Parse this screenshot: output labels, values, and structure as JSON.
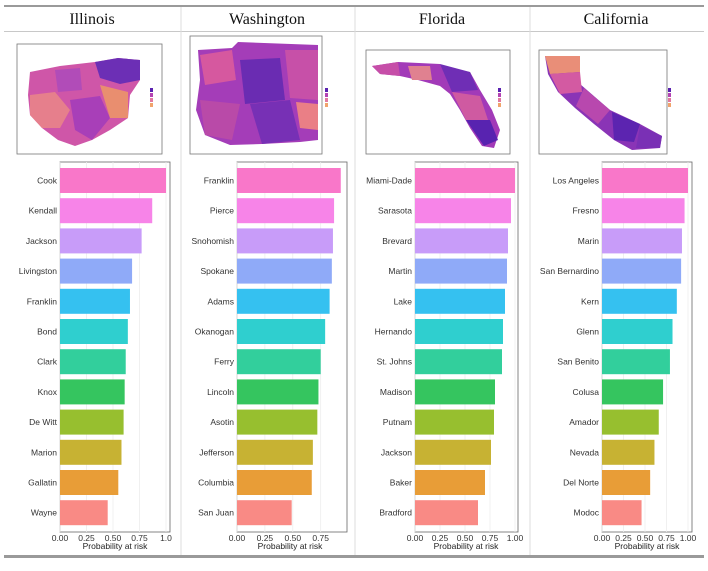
{
  "chart_data": {
    "type": "bar",
    "orientation": "horizontal",
    "xlabel": "Probability at risk",
    "xticks": [
      "0.00",
      "0.25",
      "0.50",
      "0.75",
      "1.00"
    ],
    "bar_colors": [
      "#f977c9",
      "#f784e8",
      "#c89cf9",
      "#8faaf8",
      "#35c1f0",
      "#2fcfcf",
      "#32cf9c",
      "#35c55f",
      "#97bf2f",
      "#c7b233",
      "#e89d37",
      "#f98a85"
    ],
    "panels": [
      {
        "state": "Illinois",
        "xmax": 1.0,
        "xtick_labels": [
          "0.00",
          "0.25",
          "0.50",
          "0.75",
          "1.0"
        ],
        "categories": [
          "Cook",
          "Kendall",
          "Jackson",
          "Livingston",
          "Franklin",
          "Bond",
          "Clark",
          "Knox",
          "De Witt",
          "Marion",
          "Gallatin",
          "Wayne"
        ],
        "values": [
          1.0,
          0.87,
          0.77,
          0.68,
          0.66,
          0.64,
          0.62,
          0.61,
          0.6,
          0.58,
          0.55,
          0.45
        ]
      },
      {
        "state": "Washington",
        "xmax": 0.95,
        "xtick_labels": [
          "0.00",
          "0.25",
          "0.50",
          "0.75"
        ],
        "categories": [
          "Franklin",
          "Pierce",
          "Snohomish",
          "Spokane",
          "Adams",
          "Okanogan",
          "Ferry",
          "Lincoln",
          "Asotin",
          "Jefferson",
          "Columbia",
          "San Juan"
        ],
        "values": [
          0.93,
          0.87,
          0.86,
          0.85,
          0.83,
          0.79,
          0.75,
          0.73,
          0.72,
          0.68,
          0.67,
          0.49
        ]
      },
      {
        "state": "Florida",
        "xmax": 1.0,
        "xtick_labels": [
          "0.00",
          "0.25",
          "0.50",
          "0.75",
          "1.00"
        ],
        "categories": [
          "Miami-Dade",
          "Sarasota",
          "Brevard",
          "Martin",
          "Lake",
          "Hernando",
          "St. Johns",
          "Madison",
          "Putnam",
          "Jackson",
          "Baker",
          "Bradford"
        ],
        "values": [
          1.0,
          0.96,
          0.93,
          0.92,
          0.9,
          0.88,
          0.87,
          0.8,
          0.79,
          0.76,
          0.7,
          0.63
        ]
      },
      {
        "state": "California",
        "xmax": 1.0,
        "xtick_labels": [
          "0.00",
          "0.25",
          "0.50",
          "0.75",
          "1.00"
        ],
        "categories": [
          "Los Angeles",
          "Fresno",
          "Marin",
          "San Bernardino",
          "Kern",
          "Glenn",
          "San Benito",
          "Colusa",
          "Amador",
          "Nevada",
          "Del Norte",
          "Modoc"
        ],
        "values": [
          1.0,
          0.96,
          0.93,
          0.92,
          0.87,
          0.82,
          0.79,
          0.71,
          0.66,
          0.61,
          0.56,
          0.46
        ]
      }
    ]
  }
}
